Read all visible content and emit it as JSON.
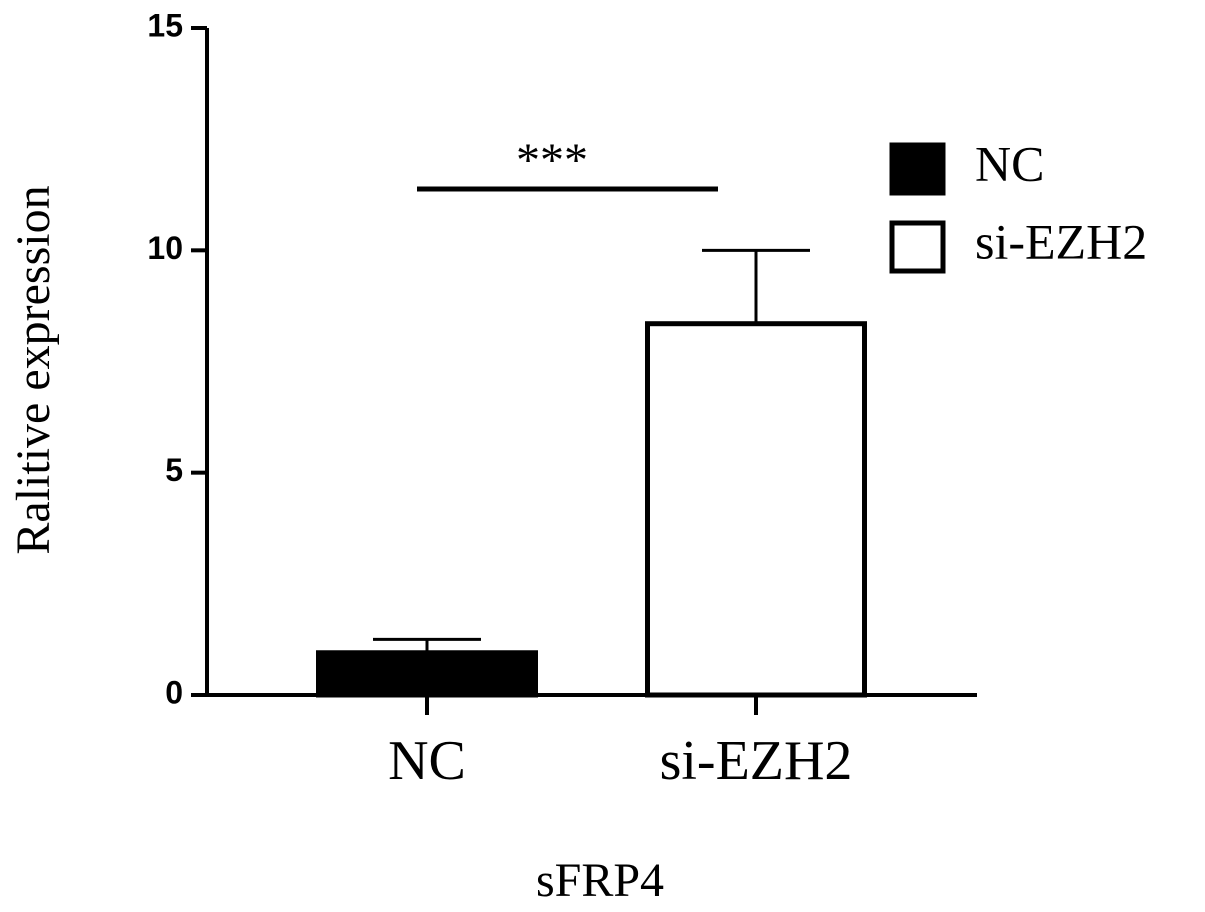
{
  "chart_data": {
    "type": "bar",
    "categories": [
      "NC",
      "si-EZH2"
    ],
    "series": [
      {
        "name": "NC",
        "color": "#000000",
        "values": [
          0.95,
          null
        ],
        "errors": [
          0.3,
          null
        ]
      },
      {
        "name": "si-EZH2",
        "color": "#ffffff",
        "values": [
          null,
          8.35
        ],
        "errors": [
          null,
          1.65
        ]
      }
    ],
    "ylabel": "Ralitive expression",
    "xlabel": "sFRP4",
    "annotation": "***",
    "ylim": [
      0,
      15
    ],
    "yticks": [
      0,
      5,
      10,
      15
    ]
  }
}
